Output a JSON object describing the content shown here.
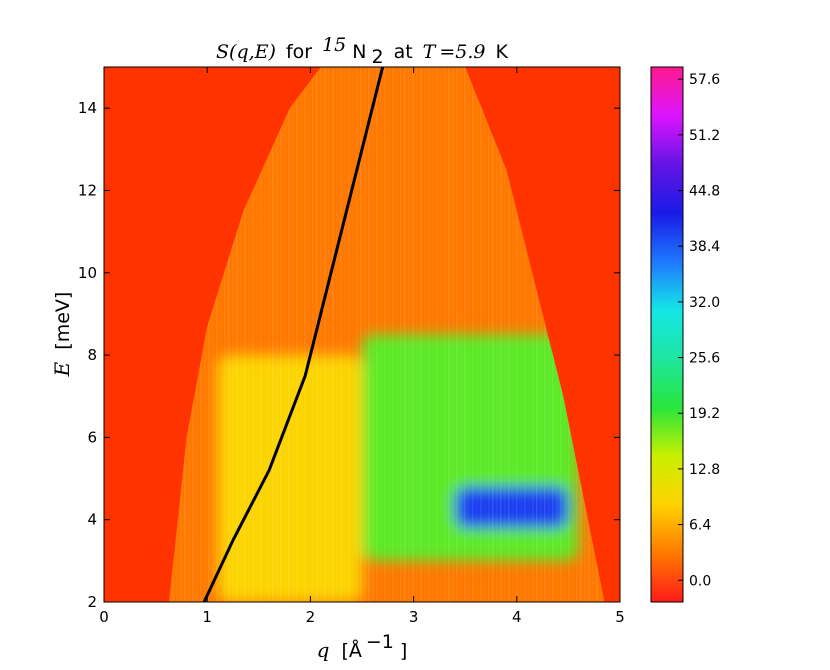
{
  "chart_data": {
    "type": "heatmap",
    "title": {
      "math_left": "S(q,E)",
      "text_for": "for",
      "superscript": "15",
      "species": "N",
      "subscript": "2",
      "text_at": "at",
      "math_T": "T",
      "math_value": "=5.9",
      "unit": "K"
    },
    "xlabel": {
      "var": "q",
      "unit": "[Å",
      "exp": "−1",
      "close": "]"
    },
    "ylabel": {
      "var": "E",
      "unit": "[meV]"
    },
    "xlim": [
      0,
      5
    ],
    "ylim": [
      2,
      15
    ],
    "x_ticks": [
      "0",
      "1",
      "2",
      "3",
      "4",
      "5"
    ],
    "y_ticks": [
      "2",
      "4",
      "6",
      "8",
      "10",
      "12",
      "14"
    ],
    "colorbar": {
      "min": -2.5,
      "max": 59,
      "ticks": [
        "0.0",
        "6.4",
        "12.8",
        "19.2",
        "25.6",
        "32.0",
        "38.4",
        "44.8",
        "51.2",
        "57.6"
      ],
      "colors": [
        "#ff1a1a",
        "#ff7a00",
        "#ffd200",
        "#c8f000",
        "#28e63c",
        "#1ee6a0",
        "#14e6e6",
        "#1e78ff",
        "#1a1ae6",
        "#6414e6",
        "#dc14ff",
        "#ff1a8c"
      ]
    },
    "background_color": "#ff3300",
    "coverage_edges": {
      "left": [
        [
          0.63,
          2
        ],
        [
          0.8,
          6
        ],
        [
          1.0,
          8.7
        ],
        [
          1.35,
          11.5
        ],
        [
          1.8,
          14
        ],
        [
          2.1,
          15
        ]
      ],
      "right": [
        [
          3.5,
          15
        ],
        [
          3.9,
          12.5
        ],
        [
          4.2,
          9.5
        ],
        [
          4.45,
          7
        ],
        [
          4.65,
          4.5
        ],
        [
          4.85,
          2
        ]
      ]
    },
    "features": [
      {
        "name": "high-intensity band",
        "q": [
          3.4,
          4.5
        ],
        "E": [
          3.8,
          4.8
        ],
        "value": 40
      },
      {
        "name": "mid band",
        "q": [
          2.5,
          4.6
        ],
        "E": [
          3,
          8.5
        ],
        "value": 18
      },
      {
        "name": "low-q arm",
        "q": [
          1.1,
          2.5
        ],
        "E": [
          2,
          8
        ],
        "value": 9
      }
    ],
    "curve": {
      "color": "#000000",
      "points": [
        [
          0.97,
          2
        ],
        [
          1.25,
          3.5
        ],
        [
          1.6,
          5.2
        ],
        [
          1.95,
          7.5
        ],
        [
          2.2,
          10
        ],
        [
          2.45,
          12.5
        ],
        [
          2.7,
          15
        ]
      ]
    }
  }
}
